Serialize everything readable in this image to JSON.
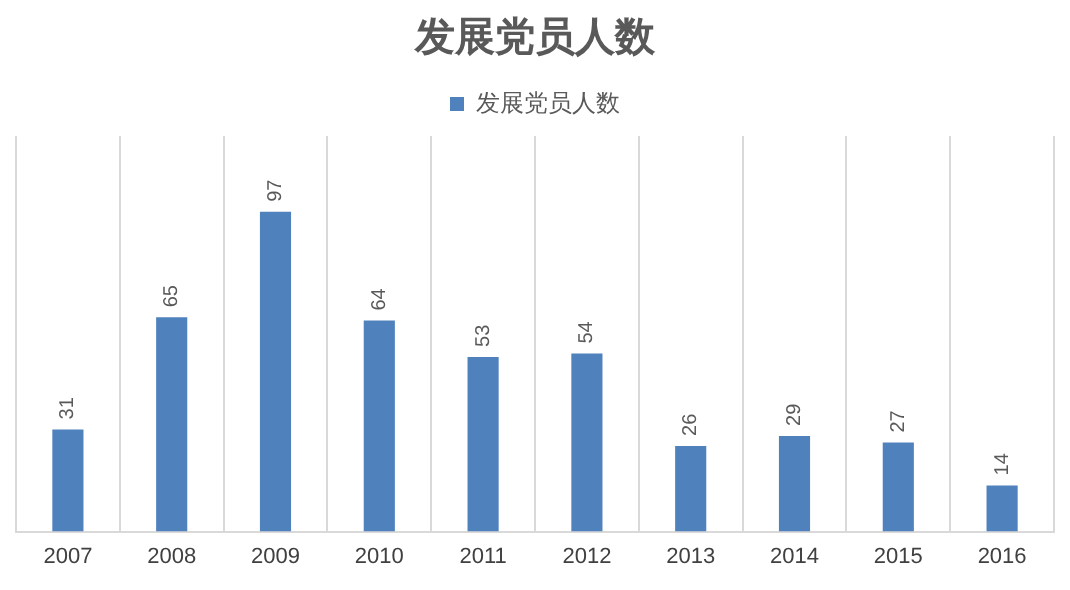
{
  "chart_data": {
    "type": "bar",
    "title": "发展党员人数",
    "categories": [
      "2007",
      "2008",
      "2009",
      "2010",
      "2011",
      "2012",
      "2013",
      "2014",
      "2015",
      "2016"
    ],
    "series": [
      {
        "name": "发展党员人数",
        "color": "#4f81bd",
        "values": [
          31,
          65,
          97,
          64,
          53,
          54,
          26,
          29,
          27,
          14
        ]
      }
    ],
    "data_labels": true,
    "grid": "x",
    "legend": "top"
  }
}
